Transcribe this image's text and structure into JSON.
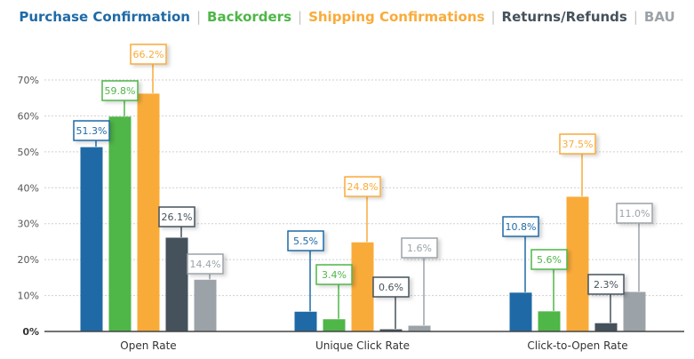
{
  "chart_data": {
    "type": "bar",
    "title": "",
    "xlabel": "",
    "ylabel": "",
    "categories": [
      "Open Rate",
      "Unique Click Rate",
      "Click-to-Open Rate"
    ],
    "ylim": [
      0,
      70
    ],
    "yticks": [
      "0%",
      "10%",
      "20%",
      "30%",
      "40%",
      "50%",
      "60%",
      "70%"
    ],
    "grid": true,
    "legend_position": "top",
    "series": [
      {
        "name": "Purchase Confirmation",
        "color": "#1f6aa6",
        "values": [
          51.3,
          5.5,
          10.8
        ],
        "labels": [
          "51.3%",
          "5.5%",
          "10.8%"
        ]
      },
      {
        "name": "Backorders",
        "color": "#4fb648",
        "values": [
          59.8,
          3.4,
          5.6
        ],
        "labels": [
          "59.8%",
          "3.4%",
          "5.6%"
        ]
      },
      {
        "name": "Shipping Confirmations",
        "color": "#f9ab3a",
        "values": [
          66.2,
          24.8,
          37.5
        ],
        "labels": [
          "66.2%",
          "24.8%",
          "37.5%"
        ]
      },
      {
        "name": "Returns/Refunds",
        "color": "#45525c",
        "values": [
          26.1,
          0.6,
          2.3
        ],
        "labels": [
          "26.1%",
          "0.6%",
          "2.3%"
        ]
      },
      {
        "name": "BAU",
        "color": "#9ca3a8",
        "values": [
          14.4,
          1.6,
          11.0
        ],
        "labels": [
          "14.4%",
          "1.6%",
          "11.0%"
        ]
      }
    ]
  }
}
